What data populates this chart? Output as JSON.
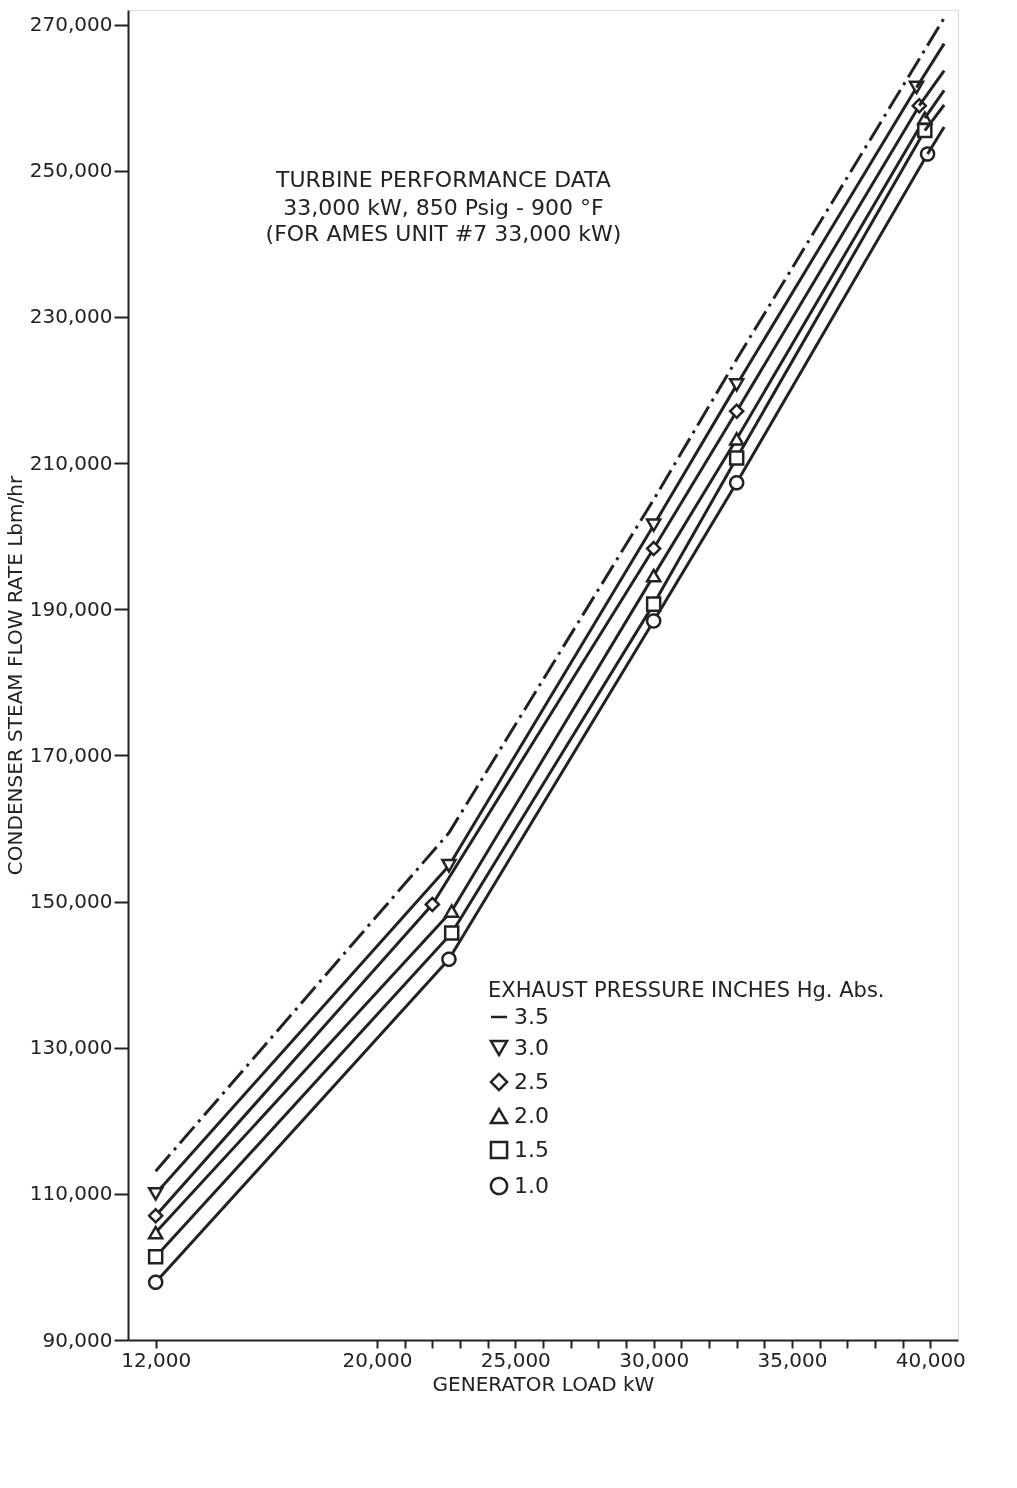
{
  "chart_data": {
    "type": "line",
    "title": "TURBINE PERFORMANCE DATA",
    "subtitle": "33,000 kW, 850 Psig - 900 °F\n(FOR AMES UNIT #7  33,000 kW)",
    "xlabel": "GENERATOR LOAD kW",
    "ylabel": "CONDENSER STEAM FLOW RATE  Lbm/hr",
    "legend_title": "EXHAUST PRESSURE INCHES Hg. Abs.",
    "legend": "bottom right",
    "grid": false,
    "xlim": [
      11000,
      41000
    ],
    "xticks": [
      {
        "value": 12000,
        "label": "12,000"
      },
      {
        "value": 20000,
        "label": "20,000"
      },
      {
        "value": 21000,
        "label": null
      },
      {
        "value": 22000,
        "label": null
      },
      {
        "value": 23000,
        "label": null
      },
      {
        "value": 24000,
        "label": null
      },
      {
        "value": 25000,
        "label": "25,000"
      },
      {
        "value": 26000,
        "label": null
      },
      {
        "value": 27000,
        "label": null
      },
      {
        "value": 28000,
        "label": null
      },
      {
        "value": 29000,
        "label": null
      },
      {
        "value": 30000,
        "label": "30,000"
      },
      {
        "value": 31000,
        "label": null
      },
      {
        "value": 32000,
        "label": null
      },
      {
        "value": 33000,
        "label": null
      },
      {
        "value": 34000,
        "label": null
      },
      {
        "value": 35000,
        "label": "35,000"
      },
      {
        "value": 36000,
        "label": null
      },
      {
        "value": 37000,
        "label": null
      },
      {
        "value": 38000,
        "label": null
      },
      {
        "value": 39000,
        "label": null
      },
      {
        "value": 40000,
        "label": "40,000"
      }
    ],
    "ylim": [
      90000,
      272000
    ],
    "yticks": [
      {
        "value": 90000,
        "label": "90,000"
      },
      {
        "value": 110000,
        "label": "110,000"
      },
      {
        "value": 130000,
        "label": "130,000"
      },
      {
        "value": 150000,
        "label": "150,000"
      },
      {
        "value": 170000,
        "label": "170,000"
      },
      {
        "value": 190000,
        "label": "190,000"
      },
      {
        "value": 210000,
        "label": "210,000"
      },
      {
        "value": 230000,
        "label": "230,000"
      },
      {
        "value": 250000,
        "label": "250,000"
      },
      {
        "value": 270000,
        "label": "270,000"
      }
    ],
    "series": [
      {
        "name": "3.5",
        "color": "#222222",
        "marker": "none",
        "line_style": "dashed",
        "x": [
          12000,
          22600,
          30000,
          33000,
          40500
        ],
        "values": [
          113100,
          159400,
          205000,
          224200,
          270900
        ]
      },
      {
        "name": "3.0",
        "color": "#222222",
        "marker": "triangle-down",
        "line_style": "solid",
        "x": [
          12000,
          22600,
          30000,
          33000,
          39500
        ],
        "values": [
          110000,
          154900,
          201500,
          220700,
          261400
        ]
      },
      {
        "name": "2.5",
        "color": "#222222",
        "marker": "diamond",
        "line_style": "solid",
        "x": [
          12000,
          22000,
          30000,
          33000,
          39600
        ],
        "values": [
          107000,
          149600,
          198300,
          217100,
          258900
        ]
      },
      {
        "name": "2.0",
        "color": "#222222",
        "marker": "triangle",
        "line_style": "solid",
        "x": [
          12000,
          22700,
          30000,
          33000,
          39800
        ],
        "values": [
          104700,
          148700,
          194600,
          213300,
          257200
        ]
      },
      {
        "name": "1.5",
        "color": "#222222",
        "marker": "square",
        "line_style": "solid",
        "x": [
          12000,
          22700,
          30000,
          33000,
          39800
        ],
        "values": [
          101400,
          145700,
          190700,
          210700,
          255500
        ]
      },
      {
        "name": "1.0",
        "color": "#222222",
        "marker": "circle",
        "line_style": "solid",
        "x": [
          12000,
          22600,
          30000,
          33000,
          39900
        ],
        "values": [
          97900,
          142100,
          188400,
          207300,
          252300
        ]
      },
      {
        "color": "#222222",
        "marker": "none",
        "line_style": "solid",
        "x": [
          39500,
          40500
        ],
        "values": [
          261400,
          267400
        ]
      },
      {
        "color": "#222222",
        "marker": "none",
        "line_style": "solid",
        "x": [
          39600,
          40500
        ],
        "values": [
          258900,
          263700
        ]
      },
      {
        "color": "#222222",
        "marker": "none",
        "line_style": "solid",
        "x": [
          39800,
          40500
        ],
        "values": [
          257200,
          261000
        ]
      },
      {
        "color": "#222222",
        "marker": "none",
        "line_style": "solid",
        "x": [
          39800,
          40500
        ],
        "values": [
          255500,
          259000
        ]
      },
      {
        "color": "#222222",
        "marker": "none",
        "line_style": "solid",
        "x": [
          39900,
          40500
        ],
        "values": [
          252300,
          256000
        ]
      }
    ]
  }
}
